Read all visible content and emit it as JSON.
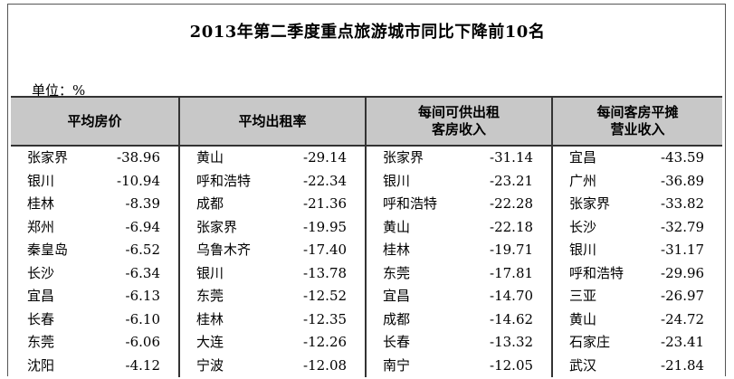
{
  "title": "2013年第二季度重点旅游城市同比下降前10名",
  "unit_label": "单位：%",
  "columns": [
    {
      "header": [
        "平均房价"
      ]
    },
    {
      "header": [
        "平均出租率"
      ]
    },
    {
      "header": [
        "每间可供出租",
        "客房收入"
      ]
    },
    {
      "header": [
        "每间客房平摊",
        "营业收入"
      ]
    }
  ],
  "rows": [
    [
      [
        "张家界",
        "-38.96"
      ],
      [
        "黄山",
        "-29.14"
      ],
      [
        "张家界",
        "-31.14"
      ],
      [
        "宜昌",
        "-43.59"
      ]
    ],
    [
      [
        "银川",
        "-10.94"
      ],
      [
        "呼和浩特",
        "-22.34"
      ],
      [
        "银川",
        "-23.21"
      ],
      [
        "广州",
        "-36.89"
      ]
    ],
    [
      [
        "桂林",
        "-8.39"
      ],
      [
        "成都",
        "-21.36"
      ],
      [
        "呼和浩特",
        "-22.28"
      ],
      [
        "张家界",
        "-33.82"
      ]
    ],
    [
      [
        "郑州",
        "-6.94"
      ],
      [
        "张家界",
        "-19.95"
      ],
      [
        "黄山",
        "-22.18"
      ],
      [
        "长沙",
        "-32.79"
      ]
    ],
    [
      [
        "秦皇岛",
        "-6.52"
      ],
      [
        "乌鲁木齐",
        "-17.40"
      ],
      [
        "桂林",
        "-19.71"
      ],
      [
        "银川",
        "-31.17"
      ]
    ],
    [
      [
        "长沙",
        "-6.34"
      ],
      [
        "银川",
        "-13.78"
      ],
      [
        "东莞",
        "-17.81"
      ],
      [
        "呼和浩特",
        "-29.96"
      ]
    ],
    [
      [
        "宜昌",
        "-6.13"
      ],
      [
        "东莞",
        "-12.52"
      ],
      [
        "宜昌",
        "-14.70"
      ],
      [
        "三亚",
        "-26.97"
      ]
    ],
    [
      [
        "长春",
        "-6.10"
      ],
      [
        "桂林",
        "-12.35"
      ],
      [
        "成都",
        "-14.62"
      ],
      [
        "黄山",
        "-24.72"
      ]
    ],
    [
      [
        "东莞",
        "-6.06"
      ],
      [
        "大连",
        "-12.26"
      ],
      [
        "长春",
        "-13.32"
      ],
      [
        "石家庄",
        "-23.41"
      ]
    ],
    [
      [
        "沈阳",
        "-4.12"
      ],
      [
        "宁波",
        "-12.08"
      ],
      [
        "南宁",
        "-12.05"
      ],
      [
        "武汉",
        "-21.84"
      ]
    ]
  ]
}
